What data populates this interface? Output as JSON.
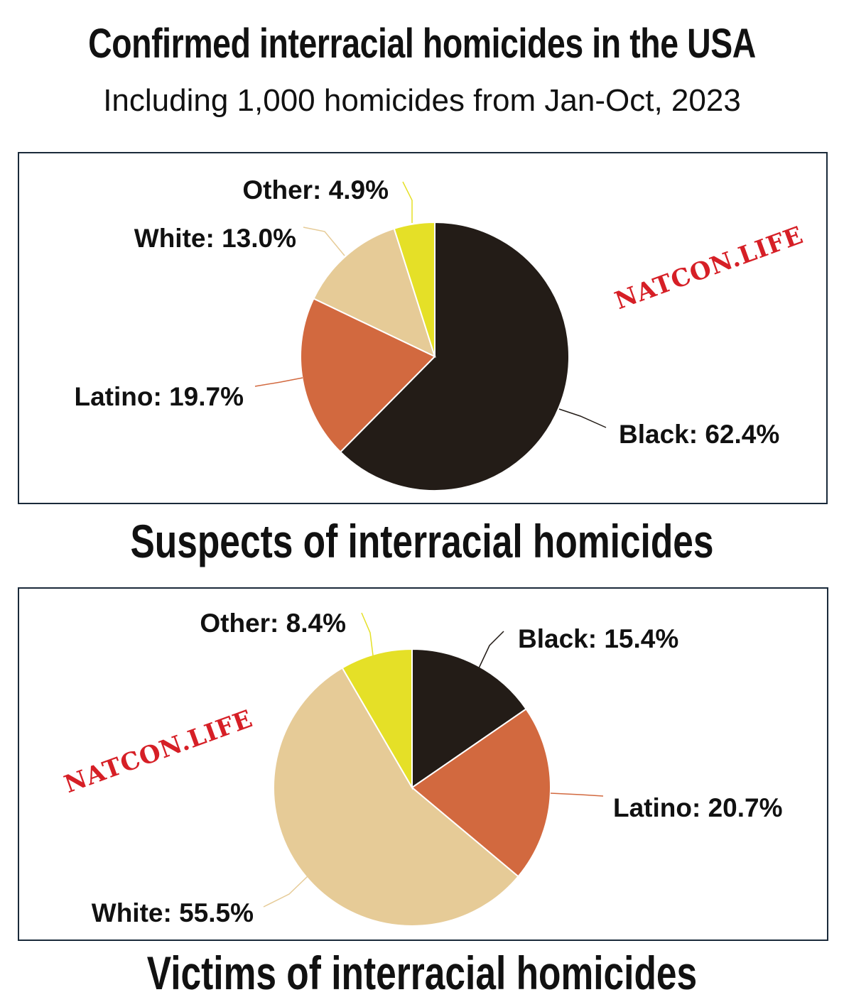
{
  "header": {
    "title": "Confirmed interracial homicides in the USA",
    "subtitle": "Including 1,000 homicides from Jan-Oct, 2023"
  },
  "watermark": "NATCON.LIFE",
  "chart_data": [
    {
      "type": "pie",
      "caption": "Suspects of interracial homicides",
      "slices": [
        {
          "name": "Black",
          "value": 62.4,
          "label": "Black: 62.4%",
          "color": "#231c17"
        },
        {
          "name": "Latino",
          "value": 19.7,
          "label": "Latino: 19.7%",
          "color": "#d2693f"
        },
        {
          "name": "White",
          "value": 13.0,
          "label": "White: 13.0%",
          "color": "#e6cb97"
        },
        {
          "name": "Other",
          "value": 4.9,
          "label": "Other: 4.9%",
          "color": "#e5e027"
        }
      ]
    },
    {
      "type": "pie",
      "caption": "Victims of interracial homicides",
      "slices": [
        {
          "name": "Black",
          "value": 15.4,
          "label": "Black: 15.4%",
          "color": "#231c17"
        },
        {
          "name": "Latino",
          "value": 20.7,
          "label": "Latino: 20.7%",
          "color": "#d2693f"
        },
        {
          "name": "White",
          "value": 55.5,
          "label": "White: 55.5%",
          "color": "#e6cb97"
        },
        {
          "name": "Other",
          "value": 8.4,
          "label": "Other: 8.4%",
          "color": "#e5e027"
        }
      ]
    }
  ]
}
